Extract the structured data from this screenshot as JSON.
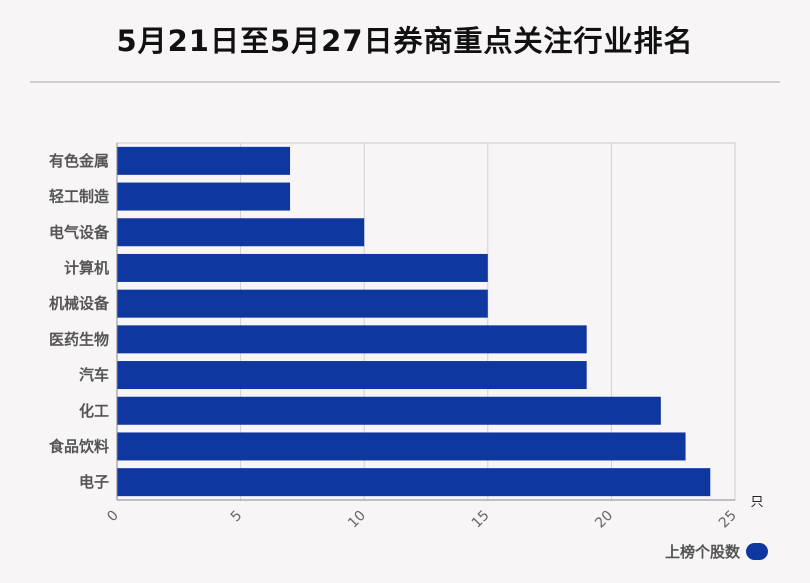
{
  "title": "5月21日至5月27日券商重点关注行业排名",
  "legend": {
    "label": "上榜个股数",
    "color": "#0f37a0"
  },
  "chart_data": {
    "type": "bar",
    "orientation": "horizontal",
    "categories": [
      "有色金属",
      "轻工制造",
      "电气设备",
      "计算机",
      "机械设备",
      "医药生物",
      "汽车",
      "化工",
      "食品饮料",
      "电子"
    ],
    "series": [
      {
        "name": "上榜个股数",
        "values": [
          7,
          7,
          10,
          15,
          15,
          19,
          19,
          22,
          23,
          24
        ],
        "color": "#0f37a0"
      }
    ],
    "xlim": [
      0,
      25
    ],
    "xticks": [
      0,
      5,
      10,
      15,
      20,
      25
    ],
    "xunit": "只",
    "grid": true,
    "legend_position": "bottom-right"
  }
}
